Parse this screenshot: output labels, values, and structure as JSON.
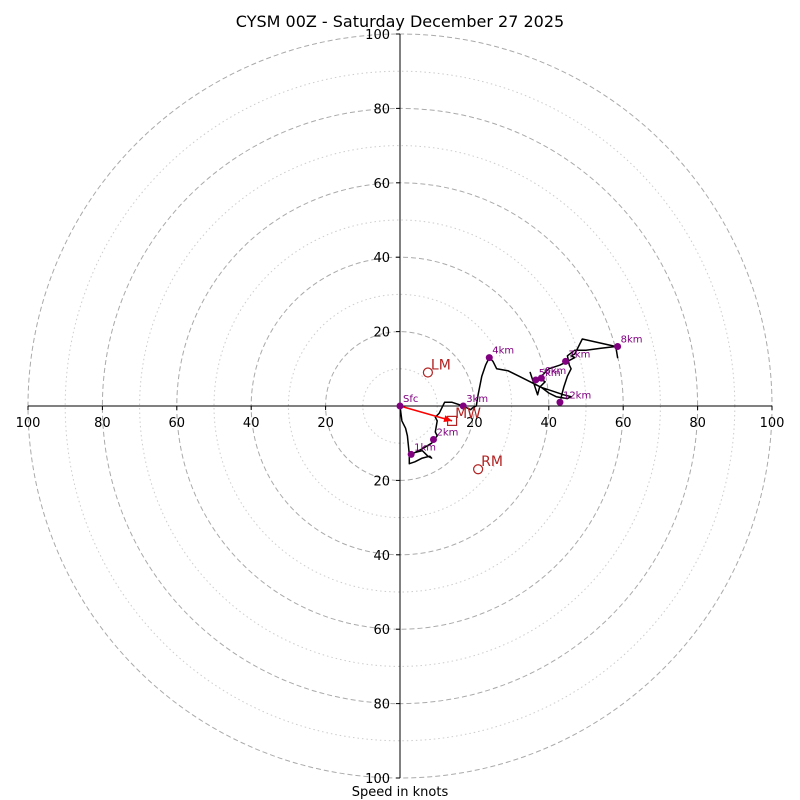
{
  "chart_data": {
    "type": "hodograph",
    "title": "CYSM 00Z - Saturday December 27 2025",
    "xlabel": "Speed in knots",
    "range": [
      -100,
      100
    ],
    "major_rings": [
      20,
      40,
      60,
      80,
      100
    ],
    "minor_rings": [
      10,
      30,
      50,
      70,
      90
    ],
    "x_ticks": [
      {
        "v": -100,
        "label": "100"
      },
      {
        "v": -80,
        "label": "80"
      },
      {
        "v": -60,
        "label": "60"
      },
      {
        "v": -40,
        "label": "40"
      },
      {
        "v": -20,
        "label": "20"
      },
      {
        "v": 20,
        "label": "20"
      },
      {
        "v": 40,
        "label": "40"
      },
      {
        "v": 60,
        "label": "60"
      },
      {
        "v": 80,
        "label": "80"
      },
      {
        "v": 100,
        "label": "100"
      }
    ],
    "y_ticks": [
      {
        "v": 100,
        "label": "100"
      },
      {
        "v": 80,
        "label": "80"
      },
      {
        "v": 60,
        "label": "60"
      },
      {
        "v": 40,
        "label": "40"
      },
      {
        "v": 20,
        "label": "20"
      },
      {
        "v": -20,
        "label": "20"
      },
      {
        "v": -40,
        "label": "40"
      },
      {
        "v": -60,
        "label": "60"
      },
      {
        "v": -80,
        "label": "80"
      },
      {
        "v": -100,
        "label": "100"
      }
    ],
    "wind_trace": [
      [
        0,
        0
      ],
      [
        0.5,
        -4
      ],
      [
        1.5,
        -6
      ],
      [
        2,
        -8
      ],
      [
        2.5,
        -13
      ],
      [
        2.5,
        -15.5
      ],
      [
        4,
        -15
      ],
      [
        6,
        -14
      ],
      [
        8,
        -13.5
      ],
      [
        8.5,
        -14
      ],
      [
        7.5,
        -13.5
      ],
      [
        6,
        -12
      ],
      [
        4,
        -12.5
      ],
      [
        3,
        -13
      ],
      [
        6,
        -11.5
      ],
      [
        8.5,
        -10
      ],
      [
        10,
        -8
      ],
      [
        9.5,
        -7
      ],
      [
        10,
        -4
      ],
      [
        9.5,
        -3
      ],
      [
        10.5,
        -2
      ],
      [
        12,
        1
      ],
      [
        14,
        1
      ],
      [
        17,
        0
      ],
      [
        19,
        -1
      ],
      [
        19.5,
        -0.5
      ],
      [
        20.5,
        0
      ],
      [
        21,
        3
      ],
      [
        22,
        8
      ],
      [
        23,
        11
      ],
      [
        24,
        13
      ],
      [
        25,
        12
      ],
      [
        26,
        10
      ],
      [
        29,
        9.5
      ],
      [
        32,
        8
      ],
      [
        35,
        6.5
      ],
      [
        38,
        5
      ],
      [
        40,
        3.5
      ],
      [
        42,
        2.5
      ],
      [
        45,
        2
      ],
      [
        46,
        2.5
      ],
      [
        44,
        3
      ],
      [
        41,
        4
      ],
      [
        38,
        5
      ],
      [
        36,
        6
      ],
      [
        35,
        9
      ],
      [
        36,
        6
      ],
      [
        37,
        3
      ],
      [
        37.5,
        5
      ],
      [
        39,
        6.5
      ],
      [
        37.5,
        7.5
      ],
      [
        40,
        10
      ],
      [
        43,
        11
      ],
      [
        45,
        12
      ],
      [
        47,
        13
      ],
      [
        46,
        13.5
      ],
      [
        47,
        14
      ],
      [
        49,
        18
      ],
      [
        58,
        16
      ],
      [
        58.5,
        13
      ],
      [
        58,
        16
      ],
      [
        54,
        15.5
      ],
      [
        50,
        15
      ],
      [
        47,
        15
      ],
      [
        45,
        13.5
      ],
      [
        45.5,
        11
      ],
      [
        46,
        10
      ],
      [
        45,
        8
      ],
      [
        44,
        5
      ],
      [
        43.5,
        3
      ],
      [
        43,
        1
      ]
    ],
    "height_markers": [
      {
        "label": "Sfc",
        "u": 0,
        "v": 0
      },
      {
        "label": "1km",
        "u": 3,
        "v": -13
      },
      {
        "label": "2km",
        "u": 9,
        "v": -9
      },
      {
        "label": "3km",
        "u": 17,
        "v": 0
      },
      {
        "label": "4km",
        "u": 24,
        "v": 13
      },
      {
        "label": "5km",
        "u": 36.5,
        "v": 7
      },
      {
        "label": "6km",
        "u": 38,
        "v": 7.5
      },
      {
        "label": "7km",
        "u": 44.5,
        "v": 12
      },
      {
        "label": "8km",
        "u": 58.5,
        "v": 16
      },
      {
        "label": "12km",
        "u": 43,
        "v": 1
      }
    ],
    "storm_motion": [
      {
        "label": "LM",
        "u": 7.5,
        "v": 9,
        "marker": "circle"
      },
      {
        "label": "RM",
        "u": 21,
        "v": -17,
        "marker": "circle"
      },
      {
        "label": "MW",
        "u": 14,
        "v": -4,
        "marker": "square"
      }
    ],
    "shear_vector": {
      "from": [
        0,
        0
      ],
      "to": [
        14,
        -4
      ]
    },
    "colors": {
      "trace": "#000000",
      "marker": "#800080",
      "motion": "#b22222",
      "shear": "#ff0000",
      "grid": "#aaaaaa"
    }
  }
}
